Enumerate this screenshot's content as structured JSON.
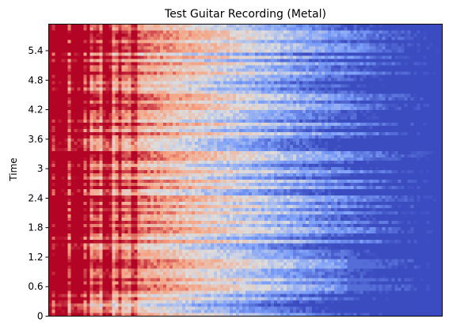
{
  "chart_data": {
    "type": "heatmap",
    "title": "Test Guitar Recording (Metal)",
    "xlabel": "",
    "ylabel": "Time",
    "y_ticks": [
      0,
      0.6,
      1.2,
      1.8,
      2.4,
      3,
      3.6,
      4.2,
      4.8,
      5.4
    ],
    "y_tick_labels": [
      "0",
      "0.6",
      "1.2",
      "1.8",
      "2.4",
      "3",
      "3.6",
      "4.2",
      "4.8",
      "5.4"
    ],
    "ylim": [
      0,
      5.94
    ],
    "x_ticks_shown": false,
    "colormap": "coolwarm",
    "colors": {
      "low": "#3b4cc0",
      "mid": "#dddddd",
      "high": "#b40426"
    },
    "grid": false
  }
}
